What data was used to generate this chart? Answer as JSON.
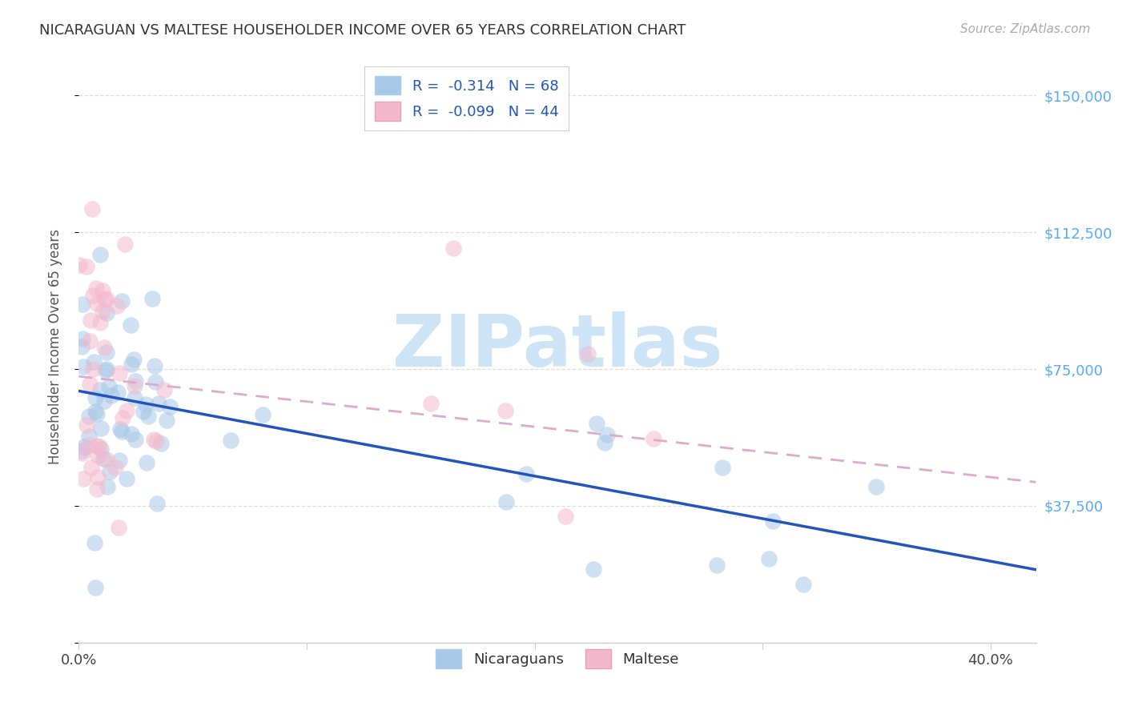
{
  "title": "NICARAGUAN VS MALTESE HOUSEHOLDER INCOME OVER 65 YEARS CORRELATION CHART",
  "source": "Source: ZipAtlas.com",
  "ylabel": "Householder Income Over 65 years",
  "xlim": [
    0.0,
    0.42
  ],
  "ylim": [
    0,
    162500
  ],
  "yticks": [
    0,
    37500,
    75000,
    112500,
    150000
  ],
  "ytick_labels_right": [
    "",
    "$37,500",
    "$75,000",
    "$112,500",
    "$150,000"
  ],
  "xticks": [
    0.0,
    0.1,
    0.2,
    0.3,
    0.4
  ],
  "xtick_labels": [
    "0.0%",
    "",
    "",
    "",
    "40.0%"
  ],
  "nicaraguan_color": "#a8c8e8",
  "maltese_color": "#f4b8cc",
  "nicaraguan_line_color": "#2255bb",
  "maltese_line_color": "#dd6688",
  "maltese_dash_color": "#ddaacc",
  "r_nicaraguan": -0.314,
  "n_nicaraguan": 68,
  "r_maltese": -0.099,
  "n_maltese": 44,
  "watermark_text": "ZIPatlas",
  "watermark_color": "#cce4f5",
  "right_axis_color": "#55aaff",
  "legend_r_color": "#2255bb",
  "legend_n_color": "#2255bb",
  "title_color": "#333333",
  "source_color": "#aaaaaa",
  "nic_line_x0": 0.0,
  "nic_line_x1": 0.42,
  "nic_line_y0": 69000,
  "nic_line_y1": 20000,
  "malt_line_x0": 0.0,
  "malt_line_x1": 0.42,
  "malt_line_y0": 73000,
  "malt_line_y1": 44000,
  "bottom_legend1": "Nicaraguans",
  "bottom_legend2": "Maltese"
}
